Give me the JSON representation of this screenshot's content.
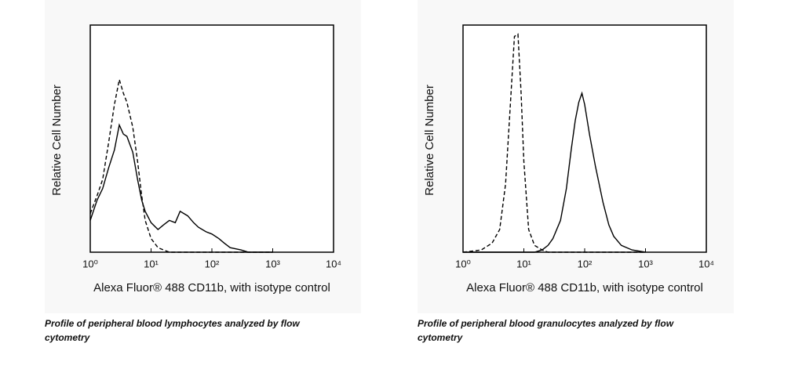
{
  "chart_data": [
    {
      "type": "line",
      "xscale": "log",
      "x_label": "Alexa Fluor® 488 CD11b, with isotype control",
      "y_label": "Relative Cell Number",
      "caption": "Profile of peripheral blood lymphocytes analyzed by flow cytometry",
      "xlim": [
        1,
        10000
      ],
      "ylim": [
        0,
        100
      ],
      "xticks": [
        {
          "value": 1,
          "label": "10⁰"
        },
        {
          "value": 10,
          "label": "10¹"
        },
        {
          "value": 100,
          "label": "10²"
        },
        {
          "value": 1000,
          "label": "10³"
        },
        {
          "value": 10000,
          "label": "10⁴"
        }
      ],
      "x": [
        1,
        1.3,
        1.6,
        2,
        2.5,
        3,
        3.5,
        4,
        5,
        6,
        7,
        8,
        10,
        13,
        16,
        20,
        25,
        30,
        40,
        50,
        60,
        80,
        100,
        130,
        160,
        200,
        300,
        400,
        600,
        1000
      ],
      "series": [
        {
          "color": "#000000",
          "dashed": false,
          "values": [
            14,
            23,
            28,
            37,
            45,
            56,
            52,
            51,
            44,
            32,
            23,
            18,
            13,
            10,
            12,
            14,
            13,
            18,
            16,
            13,
            11,
            9,
            8,
            6,
            4,
            2,
            1,
            0,
            0,
            0
          ]
        },
        {
          "color": "#000000",
          "dashed": true,
          "values": [
            17,
            25,
            32,
            48,
            65,
            76,
            70,
            66,
            55,
            40,
            25,
            14,
            6,
            2,
            1,
            0,
            0,
            0,
            0,
            0,
            0,
            0,
            0,
            0,
            0,
            0,
            0,
            0,
            0,
            0
          ]
        }
      ]
    },
    {
      "type": "line",
      "xscale": "log",
      "x_label": "Alexa Fluor® 488 CD11b, with isotype control",
      "y_label": "Relative Cell Number",
      "caption": "Profile of peripheral blood granulocytes analyzed by flow cytometry",
      "xlim": [
        1,
        10000
      ],
      "ylim": [
        0,
        100
      ],
      "xticks": [
        {
          "value": 1,
          "label": "10⁰"
        },
        {
          "value": 10,
          "label": "10¹"
        },
        {
          "value": 100,
          "label": "10²"
        },
        {
          "value": 1000,
          "label": "10³"
        },
        {
          "value": 10000,
          "label": "10⁴"
        }
      ],
      "x": [
        1,
        2,
        3,
        4,
        5,
        6,
        7,
        8,
        9,
        10,
        12,
        15,
        20,
        25,
        30,
        40,
        50,
        60,
        70,
        80,
        90,
        100,
        120,
        150,
        200,
        250,
        300,
        400,
        600,
        1000
      ],
      "series": [
        {
          "color": "#000000",
          "dashed": false,
          "values": [
            0,
            0,
            0,
            0,
            0,
            0,
            0,
            0,
            0,
            0,
            0,
            0,
            1,
            3,
            6,
            14,
            28,
            45,
            58,
            66,
            70,
            65,
            52,
            38,
            22,
            12,
            7,
            3,
            1,
            0
          ]
        },
        {
          "color": "#000000",
          "dashed": true,
          "values": [
            0,
            1,
            4,
            10,
            30,
            65,
            95,
            96,
            70,
            40,
            10,
            3,
            1,
            0,
            0,
            0,
            0,
            0,
            0,
            0,
            0,
            0,
            0,
            0,
            0,
            0,
            0,
            0,
            0,
            0
          ]
        }
      ]
    }
  ]
}
